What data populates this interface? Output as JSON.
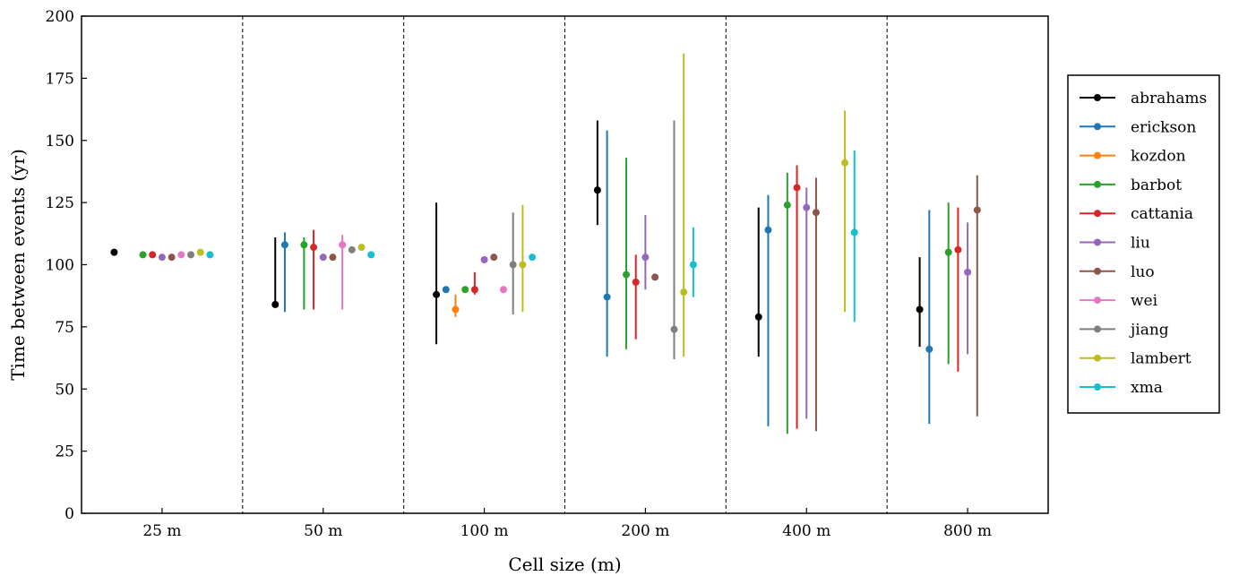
{
  "chart_data": {
    "type": "scatter",
    "title": "",
    "xlabel": "Cell size (m)",
    "ylabel": "Time between events (yr)",
    "ylim": [
      0,
      200
    ],
    "yticks": [
      0,
      25,
      50,
      75,
      100,
      125,
      150,
      175,
      200
    ],
    "categories": [
      "25 m",
      "50 m",
      "100 m",
      "200 m",
      "400 m",
      "800 m"
    ],
    "grid": false,
    "group_separators": "dashed",
    "legend_position": "right",
    "series": [
      {
        "name": "abrahams",
        "color": "#000000",
        "points": [
          {
            "category": "25 m",
            "value": 105
          },
          {
            "category": "50 m",
            "value": 84,
            "low": 84,
            "high": 111
          },
          {
            "category": "100 m",
            "value": 88,
            "low": 68,
            "high": 125
          },
          {
            "category": "200 m",
            "value": 130,
            "low": 116,
            "high": 158
          },
          {
            "category": "400 m",
            "value": 79,
            "low": 63,
            "high": 123
          },
          {
            "category": "800 m",
            "value": 82,
            "low": 67,
            "high": 103
          }
        ]
      },
      {
        "name": "erickson",
        "color": "#1f77b4",
        "points": [
          {
            "category": "50 m",
            "value": 108,
            "low": 81,
            "high": 113
          },
          {
            "category": "100 m",
            "value": 90
          },
          {
            "category": "200 m",
            "value": 87,
            "low": 63,
            "high": 154
          },
          {
            "category": "400 m",
            "value": 114,
            "low": 35,
            "high": 128
          },
          {
            "category": "800 m",
            "value": 66,
            "low": 36,
            "high": 122
          }
        ]
      },
      {
        "name": "kozdon",
        "color": "#ff7f0e",
        "points": [
          {
            "category": "100 m",
            "value": 82,
            "low": 79,
            "high": 88
          }
        ]
      },
      {
        "name": "barbot",
        "color": "#2ca02c",
        "points": [
          {
            "category": "25 m",
            "value": 104
          },
          {
            "category": "50 m",
            "value": 108,
            "low": 82,
            "high": 111
          },
          {
            "category": "100 m",
            "value": 90
          },
          {
            "category": "200 m",
            "value": 96,
            "low": 66,
            "high": 143
          },
          {
            "category": "400 m",
            "value": 124,
            "low": 32,
            "high": 137
          },
          {
            "category": "800 m",
            "value": 105,
            "low": 60,
            "high": 125
          }
        ]
      },
      {
        "name": "cattania",
        "color": "#d62728",
        "points": [
          {
            "category": "25 m",
            "value": 104
          },
          {
            "category": "50 m",
            "value": 107,
            "low": 82,
            "high": 114
          },
          {
            "category": "100 m",
            "value": 90,
            "low": 88,
            "high": 97
          },
          {
            "category": "200 m",
            "value": 93,
            "low": 70,
            "high": 104
          },
          {
            "category": "400 m",
            "value": 131,
            "low": 34,
            "high": 140
          },
          {
            "category": "800 m",
            "value": 106,
            "low": 57,
            "high": 123
          }
        ]
      },
      {
        "name": "liu",
        "color": "#9467bd",
        "points": [
          {
            "category": "25 m",
            "value": 103
          },
          {
            "category": "50 m",
            "value": 103
          },
          {
            "category": "100 m",
            "value": 102
          },
          {
            "category": "200 m",
            "value": 103,
            "low": 90,
            "high": 120
          },
          {
            "category": "400 m",
            "value": 123,
            "low": 38,
            "high": 131
          },
          {
            "category": "800 m",
            "value": 97,
            "low": 64,
            "high": 117
          }
        ]
      },
      {
        "name": "luo",
        "color": "#8c564b",
        "points": [
          {
            "category": "25 m",
            "value": 103
          },
          {
            "category": "50 m",
            "value": 103
          },
          {
            "category": "100 m",
            "value": 103
          },
          {
            "category": "200 m",
            "value": 95
          },
          {
            "category": "400 m",
            "value": 121,
            "low": 33,
            "high": 135
          },
          {
            "category": "800 m",
            "value": 122,
            "low": 39,
            "high": 136
          }
        ]
      },
      {
        "name": "wei",
        "color": "#e377c2",
        "points": [
          {
            "category": "25 m",
            "value": 104
          },
          {
            "category": "50 m",
            "value": 108,
            "low": 82,
            "high": 112
          },
          {
            "category": "100 m",
            "value": 90
          }
        ]
      },
      {
        "name": "jiang",
        "color": "#7f7f7f",
        "points": [
          {
            "category": "25 m",
            "value": 104
          },
          {
            "category": "50 m",
            "value": 106
          },
          {
            "category": "100 m",
            "value": 100,
            "low": 80,
            "high": 121
          },
          {
            "category": "200 m",
            "value": 74,
            "low": 62,
            "high": 158
          }
        ]
      },
      {
        "name": "lambert",
        "color": "#bcbd22",
        "points": [
          {
            "category": "25 m",
            "value": 105
          },
          {
            "category": "50 m",
            "value": 107
          },
          {
            "category": "100 m",
            "value": 100,
            "low": 81,
            "high": 124
          },
          {
            "category": "200 m",
            "value": 89,
            "low": 63,
            "high": 185
          },
          {
            "category": "400 m",
            "value": 141,
            "low": 81,
            "high": 162
          }
        ]
      },
      {
        "name": "xma",
        "color": "#17becf",
        "points": [
          {
            "category": "25 m",
            "value": 104
          },
          {
            "category": "50 m",
            "value": 104
          },
          {
            "category": "100 m",
            "value": 103
          },
          {
            "category": "200 m",
            "value": 100,
            "low": 87,
            "high": 115
          },
          {
            "category": "400 m",
            "value": 113,
            "low": 77,
            "high": 146
          }
        ]
      }
    ]
  }
}
